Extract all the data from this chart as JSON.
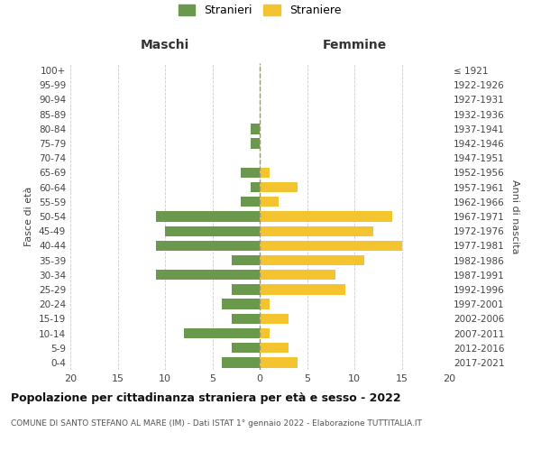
{
  "age_groups": [
    "0-4",
    "5-9",
    "10-14",
    "15-19",
    "20-24",
    "25-29",
    "30-34",
    "35-39",
    "40-44",
    "45-49",
    "50-54",
    "55-59",
    "60-64",
    "65-69",
    "70-74",
    "75-79",
    "80-84",
    "85-89",
    "90-94",
    "95-99",
    "100+"
  ],
  "birth_years": [
    "2017-2021",
    "2012-2016",
    "2007-2011",
    "2002-2006",
    "1997-2001",
    "1992-1996",
    "1987-1991",
    "1982-1986",
    "1977-1981",
    "1972-1976",
    "1967-1971",
    "1962-1966",
    "1957-1961",
    "1952-1956",
    "1947-1951",
    "1942-1946",
    "1937-1941",
    "1932-1936",
    "1927-1931",
    "1922-1926",
    "≤ 1921"
  ],
  "males": [
    4,
    3,
    8,
    3,
    4,
    3,
    11,
    3,
    11,
    10,
    11,
    2,
    1,
    2,
    0,
    1,
    1,
    0,
    0,
    0,
    0
  ],
  "females": [
    4,
    3,
    1,
    3,
    1,
    9,
    8,
    11,
    15,
    12,
    14,
    2,
    4,
    1,
    0,
    0,
    0,
    0,
    0,
    0,
    0
  ],
  "male_color": "#6a994e",
  "female_color": "#f4c430",
  "title": "Popolazione per cittadinanza straniera per età e sesso - 2022",
  "subtitle": "COMUNE DI SANTO STEFANO AL MARE (IM) - Dati ISTAT 1° gennaio 2022 - Elaborazione TUTTITALIA.IT",
  "xlabel_left": "Maschi",
  "xlabel_right": "Femmine",
  "ylabel_left": "Fasce di età",
  "ylabel_right": "Anni di nascita",
  "legend_males": "Stranieri",
  "legend_females": "Straniere",
  "xlim": 20,
  "background_color": "#ffffff",
  "grid_color": "#cccccc"
}
